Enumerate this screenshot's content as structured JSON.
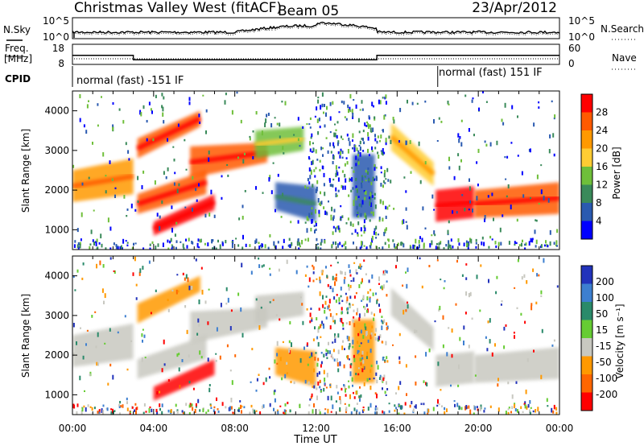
{
  "header": {
    "title": "Christmas Valley West (fitACF)",
    "beam": "Beam 05",
    "date": "23/Apr/2012"
  },
  "left_labels": {
    "nsky": "N.Sky",
    "freq_line1": "Freq.",
    "freq_line2": "[MHz]",
    "cpid": "CPID"
  },
  "right_labels": {
    "nsearch": "N.Search",
    "nave": "Nave"
  },
  "noise_axis": {
    "left_ticks": [
      "10^5",
      "10^0"
    ],
    "right_ticks": [
      "10^5",
      "10^0"
    ]
  },
  "freq_axis": {
    "left_ticks": [
      "18",
      "8"
    ],
    "right_ticks": [
      "60",
      "0"
    ]
  },
  "cpid_labels": {
    "first": "normal (fast) -151 IF",
    "second": "normal (fast) 151 IF"
  },
  "chart_data": {
    "type": "heatmap",
    "x_ticks": [
      "00:00",
      "04:00",
      "08:00",
      "12:00",
      "16:00",
      "20:00",
      "00:00"
    ],
    "xlabel": "Time UT",
    "ylabel": "Slant Range [km]",
    "y_ticks": [
      1000,
      2000,
      3000,
      4000
    ],
    "ylim": [
      500,
      4500
    ],
    "xlim_hours": [
      0,
      24
    ],
    "power": {
      "colorbar_title": "Power [dB]",
      "colorbar_ticks": [
        "28",
        "24",
        "20",
        "16",
        "12",
        "8",
        "4"
      ]
    },
    "velocity": {
      "colorbar_title": "Velocity [m s⁻¹]",
      "colorbar_ticks": [
        "200",
        "100",
        "50",
        "15",
        "-15",
        "-50",
        "-100",
        "-200"
      ]
    },
    "frequency_mhz": {
      "day_value": 12.5,
      "night_value": 10.3,
      "switch_hours": [
        3.0,
        15.0
      ]
    },
    "cpid_switch_hour": 18.0
  },
  "colors": {
    "power_scale": [
      "#ff0000",
      "#ff5a00",
      "#ff9900",
      "#ffcc33",
      "#6fbf3a",
      "#3a8a5a",
      "#2a5ab0",
      "#0000ff"
    ],
    "velocity_scale": [
      "#2233bb",
      "#3d7fd0",
      "#2a8a6a",
      "#66cc33",
      "#c8c8c0",
      "#ff9900",
      "#ff6600",
      "#ff0000"
    ]
  }
}
